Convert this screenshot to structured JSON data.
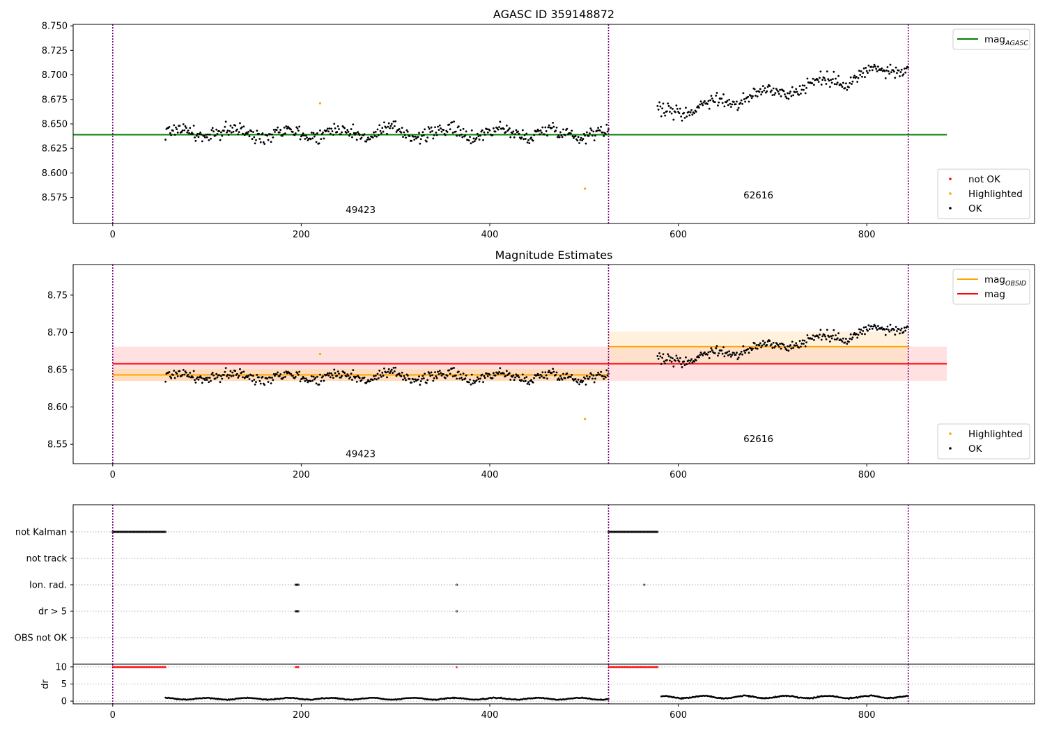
{
  "chart_data": [
    {
      "type": "scatter",
      "title": "AGASC ID 359148872",
      "xlim": [
        -42,
        978
      ],
      "ylim": [
        8.5485,
        8.7515
      ],
      "x_ticks": [
        0,
        200,
        400,
        600,
        800
      ],
      "y_ticks": [
        8.575,
        8.6,
        8.625,
        8.65,
        8.675,
        8.7,
        8.725,
        8.75
      ],
      "y_tick_labels": [
        "8.575",
        "8.600",
        "8.625",
        "8.650",
        "8.675",
        "8.700",
        "8.725",
        "8.750"
      ],
      "obsid_boundaries": [
        0,
        526,
        844
      ],
      "obsid_labels": [
        {
          "text": "49423",
          "x": 263,
          "y": 8.559
        },
        {
          "text": "62616",
          "x": 685,
          "y": 8.574
        }
      ],
      "reference_lines": [
        {
          "name": "mag_AGASC",
          "y": 8.639,
          "x_range": [
            -42,
            885
          ],
          "color": "#008000"
        }
      ],
      "series_trend": [
        {
          "x_range": [
            56,
            526
          ],
          "base": 8.641,
          "slope": 0.0,
          "noise": 0.009
        },
        {
          "x_range": [
            578,
            844
          ],
          "base": 8.66,
          "slope": 0.000182,
          "noise": 0.009
        }
      ],
      "highlighted_points": [
        {
          "x": 220,
          "y": 8.671
        },
        {
          "x": 501,
          "y": 8.584
        }
      ],
      "legends": [
        {
          "placement": "top-right",
          "entries": [
            {
              "label": "mag",
              "sub": "AGASC",
              "color": "#008000",
              "kind": "line"
            }
          ]
        },
        {
          "placement": "bottom-right",
          "entries": [
            {
              "label": "not OK",
              "color": "#ff0000",
              "kind": "dot"
            },
            {
              "label": "Highlighted",
              "color": "#ffa500",
              "kind": "dot"
            },
            {
              "label": "OK",
              "color": "#000000",
              "kind": "dot"
            }
          ]
        }
      ]
    },
    {
      "type": "scatter",
      "title": "Magnitude Estimates",
      "xlim": [
        -42,
        978
      ],
      "ylim": [
        8.524,
        8.791
      ],
      "x_ticks": [
        0,
        200,
        400,
        600,
        800
      ],
      "y_ticks": [
        8.55,
        8.6,
        8.65,
        8.7,
        8.75
      ],
      "y_tick_labels": [
        "8.55",
        "8.60",
        "8.65",
        "8.70",
        "8.75"
      ],
      "obsid_boundaries": [
        0,
        526,
        844
      ],
      "obsid_labels": [
        {
          "text": "49423",
          "x": 263,
          "y": 8.533
        },
        {
          "text": "62616",
          "x": 685,
          "y": 8.553
        }
      ],
      "bands": [
        {
          "x_range": [
            0,
            885
          ],
          "y_range": [
            8.635,
            8.681
          ],
          "color": "#ffc8c8",
          "opacity": 0.55
        },
        {
          "x_range": [
            0,
            526
          ],
          "y_range": [
            8.635,
            8.651
          ],
          "color": "#ffd8a8",
          "opacity": 0.65
        },
        {
          "x_range": [
            526,
            844
          ],
          "y_range": [
            8.66,
            8.701
          ],
          "color": "#ffe0b0",
          "opacity": 0.45
        }
      ],
      "reference_lines": [
        {
          "name": "mag_OBSID",
          "y": 8.643,
          "x_range": [
            0,
            526
          ],
          "color": "#ffa500"
        },
        {
          "name": "mag_OBSID",
          "y": 8.681,
          "x_range": [
            526,
            844
          ],
          "color": "#ffa500"
        },
        {
          "name": "mag",
          "y": 8.658,
          "x_range": [
            0,
            885
          ],
          "color": "#ff0000"
        }
      ],
      "highlighted_points": [
        {
          "x": 220,
          "y": 8.671
        },
        {
          "x": 501,
          "y": 8.584
        }
      ],
      "legends": [
        {
          "placement": "top-right",
          "entries": [
            {
              "label": "mag",
              "sub": "OBSID",
              "color": "#ffa500",
              "kind": "line"
            },
            {
              "label": "mag",
              "sub": "",
              "color": "#ff0000",
              "kind": "line"
            }
          ]
        },
        {
          "placement": "bottom-right",
          "entries": [
            {
              "label": "Highlighted",
              "color": "#ffa500",
              "kind": "dot"
            },
            {
              "label": "OK",
              "color": "#000000",
              "kind": "dot"
            }
          ]
        }
      ]
    },
    {
      "type": "scatter",
      "title": "",
      "xlim": [
        -42,
        978
      ],
      "x_ticks": [
        0,
        200,
        400,
        600,
        800
      ],
      "flag_rows": [
        "not Kalman",
        "not track",
        "Ion. rad.",
        "dr > 5",
        "OBS not OK"
      ],
      "obsid_boundaries": [
        0,
        526,
        844
      ],
      "flags": {
        "not Kalman": [
          [
            0,
            56
          ],
          [
            526,
            578
          ]
        ],
        "not track": [],
        "Ion. rad.": [
          [
            194,
            197
          ],
          [
            365,
            365
          ],
          [
            564,
            564
          ]
        ],
        "dr > 5": [
          [
            194,
            197
          ],
          [
            365,
            365
          ]
        ],
        "OBS not OK": []
      },
      "dr_panel": {
        "ylabel": "dr",
        "ylim": [
          -0.8,
          10.8
        ],
        "y_ticks": [
          0,
          5,
          10
        ],
        "y_tick_labels": [
          "0",
          "5",
          "10"
        ],
        "clipped_value": 10,
        "clipped_ranges": [
          [
            0,
            56
          ],
          [
            194,
            197
          ],
          [
            365,
            365
          ],
          [
            526,
            578
          ]
        ],
        "trend": [
          {
            "x_range": [
              56,
              526
            ],
            "base": 0.7,
            "noise": 0.25
          },
          {
            "x_range": [
              582,
              844
            ],
            "base": 1.2,
            "noise": 0.35
          }
        ]
      }
    }
  ],
  "colors": {
    "ok": "#000000",
    "highlighted": "#ffa500",
    "not_ok": "#ff0000",
    "boundary": "#800080",
    "grid": "#b0b0b0"
  }
}
